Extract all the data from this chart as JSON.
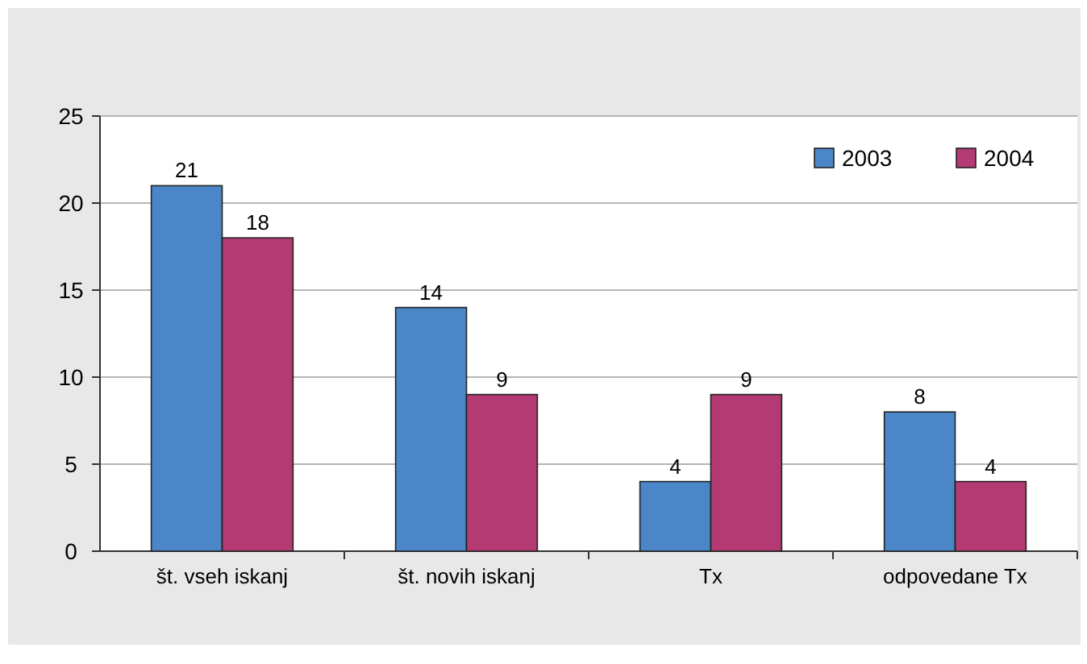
{
  "chart_data": {
    "type": "bar",
    "categories": [
      "št. vseh iskanj",
      "št. novih iskanj",
      "Tx",
      "odpovedane Tx"
    ],
    "series": [
      {
        "name": "2003",
        "color": "#4a86c8",
        "values": [
          21,
          14,
          4,
          8
        ]
      },
      {
        "name": "2004",
        "color": "#b33a73",
        "values": [
          18,
          9,
          9,
          4
        ]
      }
    ],
    "ylim": [
      0,
      25
    ],
    "yticks": [
      0,
      5,
      10,
      15,
      20,
      25
    ],
    "grid": "y",
    "legend": "top right",
    "data_labels": true
  }
}
